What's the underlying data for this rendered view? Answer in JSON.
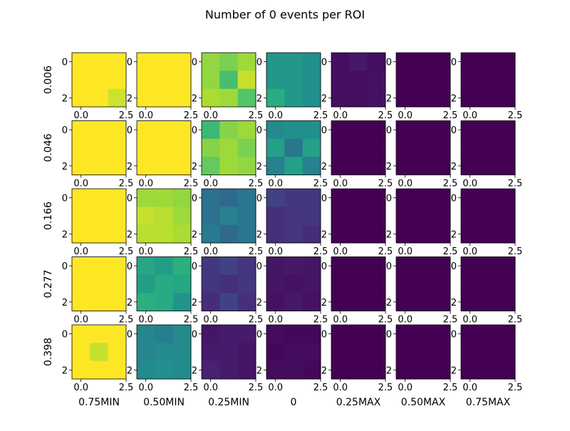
{
  "chart_data": {
    "type": "heatmap",
    "title": "Number of 0 events per ROI",
    "row_labels": [
      "0.006",
      "0.046",
      "0.166",
      "0.277",
      "0.398"
    ],
    "col_labels": [
      "0.75MIN",
      "0.50MIN",
      "0.25MIN",
      "0",
      "0.25MAX",
      "0.50MAX",
      "0.75MAX"
    ],
    "x_ticks": [
      "0.0",
      "2.5"
    ],
    "y_ticks": [
      "0",
      "2"
    ],
    "colormap": "viridis",
    "value_range": [
      0,
      1
    ],
    "grid": false,
    "cells": [
      [
        [
          [
            1.0,
            1.0,
            1.0
          ],
          [
            1.0,
            1.0,
            1.0
          ],
          [
            1.0,
            1.0,
            0.93
          ]
        ],
        [
          [
            1.0,
            1.0,
            1.0
          ],
          [
            1.0,
            1.0,
            1.0
          ],
          [
            1.0,
            1.0,
            1.0
          ]
        ],
        [
          [
            0.84,
            0.8,
            0.86
          ],
          [
            0.84,
            0.7,
            0.92
          ],
          [
            0.88,
            0.86,
            0.73
          ]
        ],
        [
          [
            0.53,
            0.53,
            0.5
          ],
          [
            0.53,
            0.53,
            0.5
          ],
          [
            0.63,
            0.53,
            0.5
          ]
        ],
        [
          [
            0.04,
            0.07,
            0.04
          ],
          [
            0.04,
            0.04,
            0.05
          ],
          [
            0.04,
            0.04,
            0.05
          ]
        ],
        [
          [
            0.0,
            0.0,
            0.0
          ],
          [
            0.0,
            0.0,
            0.0
          ],
          [
            0.0,
            0.0,
            0.0
          ]
        ],
        [
          [
            0.0,
            0.0,
            0.0
          ],
          [
            0.0,
            0.0,
            0.0
          ],
          [
            0.0,
            0.0,
            0.0
          ]
        ]
      ],
      [
        [
          [
            1.0,
            1.0,
            1.0
          ],
          [
            1.0,
            1.0,
            1.0
          ],
          [
            1.0,
            1.0,
            1.0
          ]
        ],
        [
          [
            1.0,
            1.0,
            1.0
          ],
          [
            1.0,
            1.0,
            1.0
          ],
          [
            1.0,
            1.0,
            1.0
          ]
        ],
        [
          [
            0.68,
            0.82,
            0.86
          ],
          [
            0.82,
            0.86,
            0.8
          ],
          [
            0.76,
            0.86,
            0.84
          ]
        ],
        [
          [
            0.48,
            0.5,
            0.5
          ],
          [
            0.57,
            0.4,
            0.57
          ],
          [
            0.44,
            0.57,
            0.44
          ]
        ],
        [
          [
            0.0,
            0.0,
            0.0
          ],
          [
            0.0,
            0.0,
            0.0
          ],
          [
            0.0,
            0.0,
            0.0
          ]
        ],
        [
          [
            0.0,
            0.0,
            0.0
          ],
          [
            0.0,
            0.0,
            0.0
          ],
          [
            0.0,
            0.0,
            0.0
          ]
        ],
        [
          [
            0.0,
            0.0,
            0.0
          ],
          [
            0.0,
            0.0,
            0.0
          ],
          [
            0.0,
            0.0,
            0.0
          ]
        ]
      ],
      [
        [
          [
            1.0,
            1.0,
            1.0
          ],
          [
            1.0,
            1.0,
            1.0
          ],
          [
            1.0,
            1.0,
            1.0
          ]
        ],
        [
          [
            0.86,
            0.86,
            0.84
          ],
          [
            0.92,
            0.9,
            0.86
          ],
          [
            0.9,
            0.9,
            0.88
          ]
        ],
        [
          [
            0.38,
            0.35,
            0.4
          ],
          [
            0.38,
            0.44,
            0.4
          ],
          [
            0.42,
            0.35,
            0.4
          ]
        ],
        [
          [
            0.2,
            0.17,
            0.17
          ],
          [
            0.14,
            0.16,
            0.17
          ],
          [
            0.14,
            0.16,
            0.13
          ]
        ],
        [
          [
            0.0,
            0.0,
            0.0
          ],
          [
            0.0,
            0.0,
            0.0
          ],
          [
            0.0,
            0.0,
            0.0
          ]
        ],
        [
          [
            0.0,
            0.0,
            0.0
          ],
          [
            0.0,
            0.0,
            0.0
          ],
          [
            0.0,
            0.0,
            0.0
          ]
        ],
        [
          [
            0.0,
            0.0,
            0.0
          ],
          [
            0.0,
            0.0,
            0.0
          ],
          [
            0.0,
            0.0,
            0.0
          ]
        ]
      ],
      [
        [
          [
            1.0,
            1.0,
            1.0
          ],
          [
            1.0,
            1.0,
            1.0
          ],
          [
            1.0,
            1.0,
            1.0
          ]
        ],
        [
          [
            0.6,
            0.56,
            0.64
          ],
          [
            0.56,
            0.62,
            0.6
          ],
          [
            0.64,
            0.62,
            0.52
          ]
        ],
        [
          [
            0.17,
            0.2,
            0.16
          ],
          [
            0.17,
            0.14,
            0.17
          ],
          [
            0.13,
            0.2,
            0.14
          ]
        ],
        [
          [
            0.06,
            0.07,
            0.06
          ],
          [
            0.06,
            0.05,
            0.06
          ],
          [
            0.05,
            0.07,
            0.05
          ]
        ],
        [
          [
            0.0,
            0.0,
            0.0
          ],
          [
            0.0,
            0.0,
            0.0
          ],
          [
            0.0,
            0.0,
            0.0
          ]
        ],
        [
          [
            0.0,
            0.0,
            0.0
          ],
          [
            0.0,
            0.0,
            0.0
          ],
          [
            0.0,
            0.0,
            0.0
          ]
        ],
        [
          [
            0.0,
            0.0,
            0.0
          ],
          [
            0.0,
            0.0,
            0.0
          ],
          [
            0.0,
            0.0,
            0.0
          ]
        ]
      ],
      [
        [
          [
            1.0,
            1.0,
            1.0
          ],
          [
            1.0,
            0.92,
            1.0
          ],
          [
            1.0,
            1.0,
            1.0
          ]
        ],
        [
          [
            0.46,
            0.43,
            0.48
          ],
          [
            0.46,
            0.48,
            0.48
          ],
          [
            0.48,
            0.5,
            0.48
          ]
        ],
        [
          [
            0.06,
            0.08,
            0.08
          ],
          [
            0.08,
            0.08,
            0.06
          ],
          [
            0.1,
            0.08,
            0.06
          ]
        ],
        [
          [
            0.03,
            0.02,
            0.02
          ],
          [
            0.02,
            0.03,
            0.03
          ],
          [
            0.03,
            0.03,
            0.02
          ]
        ],
        [
          [
            0.0,
            0.0,
            0.0
          ],
          [
            0.0,
            0.0,
            0.0
          ],
          [
            0.0,
            0.0,
            0.0
          ]
        ],
        [
          [
            0.0,
            0.0,
            0.0
          ],
          [
            0.0,
            0.0,
            0.0
          ],
          [
            0.0,
            0.0,
            0.0
          ]
        ],
        [
          [
            0.0,
            0.0,
            0.0
          ],
          [
            0.0,
            0.0,
            0.0
          ],
          [
            0.0,
            0.0,
            0.0
          ]
        ]
      ]
    ]
  }
}
